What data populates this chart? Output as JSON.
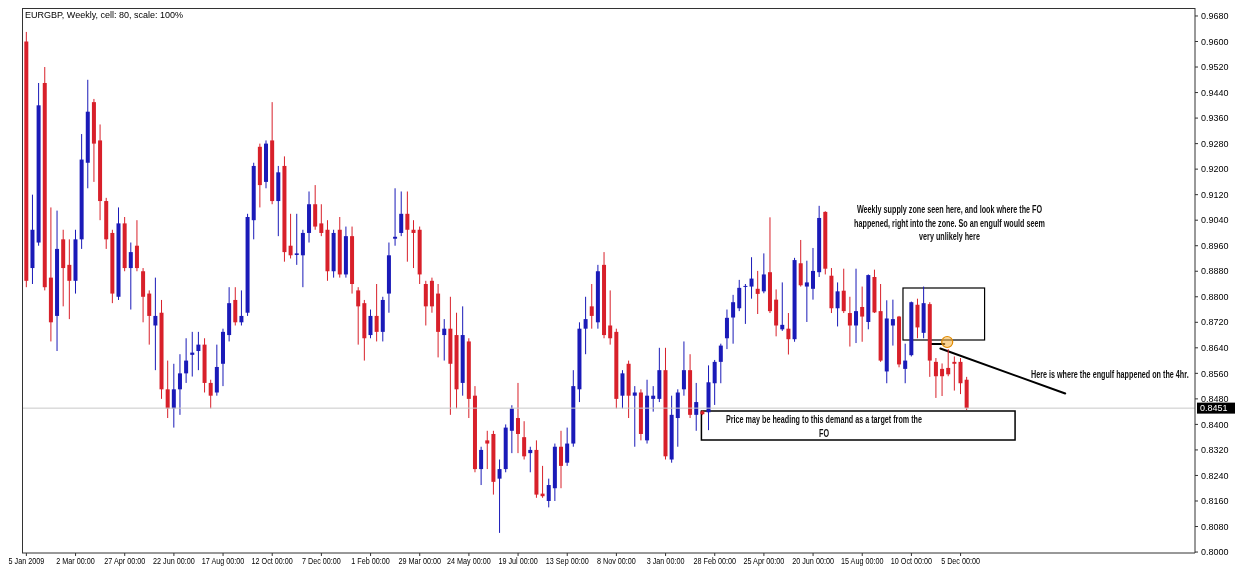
{
  "chart_data": {
    "type": "candlestick",
    "title": "EURGBP, Weekly, cell: 80, scale: 100%",
    "x": [
      "2009-01-05",
      "2009-01-12",
      "2009-01-19",
      "2009-01-26",
      "2009-02-02",
      "2009-02-09",
      "2009-02-16",
      "2009-02-23",
      "2009-03-02",
      "2009-03-09",
      "2009-03-16",
      "2009-03-23",
      "2009-03-30",
      "2009-04-06",
      "2009-04-13",
      "2009-04-20",
      "2009-04-27",
      "2009-05-04",
      "2009-05-11",
      "2009-05-18",
      "2009-05-25",
      "2009-06-01",
      "2009-06-08",
      "2009-06-15",
      "2009-06-22",
      "2009-06-29",
      "2009-07-06",
      "2009-07-13",
      "2009-07-20",
      "2009-07-27",
      "2009-08-03",
      "2009-08-10",
      "2009-08-17",
      "2009-08-24",
      "2009-08-31",
      "2009-09-07",
      "2009-09-14",
      "2009-09-21",
      "2009-09-28",
      "2009-10-05",
      "2009-10-12",
      "2009-10-19",
      "2009-10-26",
      "2009-11-02",
      "2009-11-09",
      "2009-11-16",
      "2009-11-23",
      "2009-11-30",
      "2009-12-07",
      "2009-12-14",
      "2009-12-21",
      "2009-12-28",
      "2010-01-04",
      "2010-01-11",
      "2010-01-18",
      "2010-01-25",
      "2010-02-01",
      "2010-02-08",
      "2010-02-15",
      "2010-02-22",
      "2010-03-01",
      "2010-03-08",
      "2010-03-15",
      "2010-03-22",
      "2010-03-29",
      "2010-04-05",
      "2010-04-12",
      "2010-04-19",
      "2010-04-26",
      "2010-05-03",
      "2010-05-10",
      "2010-05-17",
      "2010-05-24",
      "2010-05-31",
      "2010-06-07",
      "2010-06-14",
      "2010-06-21",
      "2010-06-28",
      "2010-07-05",
      "2010-07-12",
      "2010-07-19",
      "2010-07-26",
      "2010-08-02",
      "2010-08-09",
      "2010-08-16",
      "2010-08-23",
      "2010-08-30",
      "2010-09-06",
      "2010-09-13",
      "2010-09-20",
      "2010-09-27",
      "2010-10-04",
      "2010-10-11",
      "2010-10-18",
      "2010-10-25",
      "2010-11-01",
      "2010-11-08",
      "2010-11-15",
      "2010-11-22",
      "2010-11-29",
      "2010-12-06",
      "2010-12-13",
      "2010-12-20",
      "2010-12-27",
      "2011-01-03",
      "2011-01-10",
      "2011-01-17",
      "2011-01-24",
      "2011-01-31",
      "2011-02-07",
      "2011-02-14",
      "2011-02-21",
      "2011-02-28",
      "2011-03-07",
      "2011-03-14",
      "2011-03-21",
      "2011-03-28",
      "2011-04-04",
      "2011-04-11",
      "2011-04-18",
      "2011-04-25",
      "2011-05-02",
      "2011-05-09",
      "2011-05-16",
      "2011-05-23",
      "2011-05-30",
      "2011-06-06",
      "2011-06-13",
      "2011-06-20",
      "2011-06-27",
      "2011-07-04",
      "2011-07-11",
      "2011-07-18",
      "2011-07-25",
      "2011-08-01",
      "2011-08-08",
      "2011-08-15",
      "2011-08-22",
      "2011-08-29",
      "2011-09-05",
      "2011-09-12",
      "2011-09-19",
      "2011-09-26",
      "2011-10-03",
      "2011-10-10",
      "2011-10-17",
      "2011-10-24",
      "2011-10-31",
      "2011-11-07",
      "2011-11-14",
      "2011-11-21",
      "2011-11-28",
      "2011-12-05",
      "2011-12-12"
    ],
    "ohlc": [
      [
        0.96,
        0.963,
        0.883,
        0.885
      ],
      [
        0.889,
        0.912,
        0.884,
        0.901
      ],
      [
        0.897,
        0.947,
        0.896,
        0.94
      ],
      [
        0.947,
        0.952,
        0.882,
        0.883
      ],
      [
        0.886,
        0.908,
        0.866,
        0.872
      ],
      [
        0.874,
        0.907,
        0.863,
        0.895
      ],
      [
        0.898,
        0.901,
        0.877,
        0.889
      ],
      [
        0.89,
        0.898,
        0.873,
        0.885
      ],
      [
        0.885,
        0.901,
        0.881,
        0.898
      ],
      [
        0.898,
        0.931,
        0.895,
        0.923
      ],
      [
        0.922,
        0.948,
        0.914,
        0.938
      ],
      [
        0.941,
        0.942,
        0.916,
        0.928
      ],
      [
        0.929,
        0.934,
        0.904,
        0.91
      ],
      [
        0.91,
        0.911,
        0.895,
        0.898
      ],
      [
        0.9,
        0.901,
        0.878,
        0.881
      ],
      [
        0.88,
        0.908,
        0.879,
        0.903
      ],
      [
        0.903,
        0.905,
        0.888,
        0.889
      ],
      [
        0.889,
        0.897,
        0.876,
        0.894
      ],
      [
        0.896,
        0.904,
        0.888,
        0.889
      ],
      [
        0.888,
        0.889,
        0.872,
        0.88
      ],
      [
        0.881,
        0.882,
        0.865,
        0.874
      ],
      [
        0.871,
        0.886,
        0.857,
        0.874
      ],
      [
        0.875,
        0.879,
        0.848,
        0.851
      ],
      [
        0.851,
        0.86,
        0.842,
        0.845
      ],
      [
        0.845,
        0.859,
        0.839,
        0.851
      ],
      [
        0.851,
        0.862,
        0.843,
        0.856
      ],
      [
        0.856,
        0.867,
        0.853,
        0.86
      ],
      [
        0.8618,
        0.869,
        0.855,
        0.8625
      ],
      [
        0.863,
        0.869,
        0.857,
        0.865
      ],
      [
        0.865,
        0.867,
        0.85,
        0.853
      ],
      [
        0.853,
        0.854,
        0.845,
        0.849
      ],
      [
        0.85,
        0.865,
        0.849,
        0.858
      ],
      [
        0.859,
        0.87,
        0.852,
        0.869
      ],
      [
        0.868,
        0.883,
        0.866,
        0.878
      ],
      [
        0.879,
        0.883,
        0.871,
        0.872
      ],
      [
        0.872,
        0.882,
        0.871,
        0.874
      ],
      [
        0.875,
        0.906,
        0.874,
        0.905
      ],
      [
        0.904,
        0.922,
        0.898,
        0.921
      ],
      [
        0.927,
        0.928,
        0.908,
        0.915
      ],
      [
        0.916,
        0.929,
        0.914,
        0.928
      ],
      [
        0.929,
        0.941,
        0.909,
        0.91
      ],
      [
        0.91,
        0.921,
        0.899,
        0.919
      ],
      [
        0.921,
        0.924,
        0.891,
        0.894
      ],
      [
        0.896,
        0.906,
        0.892,
        0.893
      ],
      [
        0.8931,
        0.906,
        0.89,
        0.8936
      ],
      [
        0.893,
        0.901,
        0.883,
        0.9
      ],
      [
        0.9,
        0.913,
        0.897,
        0.909
      ],
      [
        0.909,
        0.915,
        0.901,
        0.902
      ],
      [
        0.903,
        0.909,
        0.899,
        0.9
      ],
      [
        0.901,
        0.904,
        0.885,
        0.888
      ],
      [
        0.888,
        0.901,
        0.886,
        0.9
      ],
      [
        0.901,
        0.905,
        0.886,
        0.887
      ],
      [
        0.887,
        0.902,
        0.886,
        0.899
      ],
      [
        0.899,
        0.902,
        0.881,
        0.884
      ],
      [
        0.882,
        0.883,
        0.865,
        0.877
      ],
      [
        0.878,
        0.879,
        0.86,
        0.867
      ],
      [
        0.868,
        0.876,
        0.867,
        0.874
      ],
      [
        0.874,
        0.884,
        0.866,
        0.869
      ],
      [
        0.869,
        0.88,
        0.866,
        0.879
      ],
      [
        0.881,
        0.897,
        0.875,
        0.893
      ],
      [
        0.8982,
        0.914,
        0.896,
        0.8988
      ],
      [
        0.9,
        0.913,
        0.899,
        0.906
      ],
      [
        0.906,
        0.913,
        0.891,
        0.901
      ],
      [
        0.901,
        0.904,
        0.889,
        0.9
      ],
      [
        0.901,
        0.902,
        0.884,
        0.887
      ],
      [
        0.884,
        0.885,
        0.871,
        0.877
      ],
      [
        0.885,
        0.886,
        0.875,
        0.877
      ],
      [
        0.881,
        0.884,
        0.861,
        0.869
      ],
      [
        0.868,
        0.873,
        0.86,
        0.87
      ],
      [
        0.87,
        0.88,
        0.843,
        0.859
      ],
      [
        0.868,
        0.875,
        0.845,
        0.851
      ],
      [
        0.853,
        0.877,
        0.849,
        0.868
      ],
      [
        0.866,
        0.867,
        0.842,
        0.848
      ],
      [
        0.849,
        0.852,
        0.825,
        0.826
      ],
      [
        0.826,
        0.833,
        0.821,
        0.832
      ],
      [
        0.835,
        0.838,
        0.826,
        0.834
      ],
      [
        0.837,
        0.838,
        0.818,
        0.822
      ],
      [
        0.823,
        0.829,
        0.806,
        0.826
      ],
      [
        0.826,
        0.84,
        0.825,
        0.839
      ],
      [
        0.838,
        0.846,
        0.831,
        0.845
      ],
      [
        0.842,
        0.853,
        0.831,
        0.837
      ],
      [
        0.836,
        0.841,
        0.829,
        0.83
      ],
      [
        0.831,
        0.833,
        0.825,
        0.832
      ],
      [
        0.832,
        0.835,
        0.817,
        0.818
      ],
      [
        0.8183,
        0.827,
        0.817,
        0.8175
      ],
      [
        0.816,
        0.823,
        0.814,
        0.821
      ],
      [
        0.82,
        0.834,
        0.816,
        0.833
      ],
      [
        0.833,
        0.838,
        0.82,
        0.827
      ],
      [
        0.828,
        0.839,
        0.827,
        0.834
      ],
      [
        0.834,
        0.857,
        0.833,
        0.852
      ],
      [
        0.851,
        0.872,
        0.847,
        0.87
      ],
      [
        0.87,
        0.88,
        0.862,
        0.873
      ],
      [
        0.877,
        0.884,
        0.87,
        0.874
      ],
      [
        0.872,
        0.89,
        0.87,
        0.888
      ],
      [
        0.89,
        0.894,
        0.867,
        0.868
      ],
      [
        0.871,
        0.882,
        0.865,
        0.867
      ],
      [
        0.869,
        0.87,
        0.845,
        0.848
      ],
      [
        0.849,
        0.857,
        0.845,
        0.856
      ],
      [
        0.859,
        0.86,
        0.842,
        0.849
      ],
      [
        0.849,
        0.852,
        0.833,
        0.85
      ],
      [
        0.85,
        0.851,
        0.835,
        0.837
      ],
      [
        0.835,
        0.854,
        0.834,
        0.849
      ],
      [
        0.848,
        0.852,
        0.844,
        0.849
      ],
      [
        0.848,
        0.864,
        0.847,
        0.857
      ],
      [
        0.857,
        0.864,
        0.829,
        0.83
      ],
      [
        0.829,
        0.849,
        0.828,
        0.843
      ],
      [
        0.842,
        0.851,
        0.833,
        0.85
      ],
      [
        0.851,
        0.866,
        0.849,
        0.857
      ],
      [
        0.857,
        0.862,
        0.842,
        0.843
      ],
      [
        0.843,
        0.853,
        0.838,
        0.847
      ],
      [
        0.8441,
        0.8444,
        0.8429,
        0.8432
      ],
      [
        0.8438,
        0.8585,
        0.8382,
        0.8532
      ],
      [
        0.8529,
        0.8602,
        0.8461,
        0.8596
      ],
      [
        0.8596,
        0.8653,
        0.8529,
        0.8647
      ],
      [
        0.867,
        0.876,
        0.8636,
        0.8734
      ],
      [
        0.8735,
        0.8806,
        0.8653,
        0.8783
      ],
      [
        0.8764,
        0.8853,
        0.8755,
        0.8828
      ],
      [
        0.8831,
        0.884,
        0.8715,
        0.8834
      ],
      [
        0.8832,
        0.8924,
        0.8794,
        0.8857
      ],
      [
        0.8825,
        0.8881,
        0.8746,
        0.8809
      ],
      [
        0.8817,
        0.8936,
        0.8811,
        0.887
      ],
      [
        0.8877,
        0.9049,
        0.8749,
        0.8755
      ],
      [
        0.8791,
        0.8823,
        0.8676,
        0.871
      ],
      [
        0.8698,
        0.8845,
        0.8693,
        0.8712
      ],
      [
        0.87,
        0.8749,
        0.8619,
        0.8667
      ],
      [
        0.8667,
        0.8922,
        0.8659,
        0.8915
      ],
      [
        0.8905,
        0.8978,
        0.8832,
        0.8836
      ],
      [
        0.8832,
        0.8913,
        0.8721,
        0.8845
      ],
      [
        0.8825,
        0.8953,
        0.8791,
        0.8881
      ],
      [
        0.8877,
        0.9085,
        0.8862,
        0.9047
      ],
      [
        0.9066,
        0.9068,
        0.887,
        0.8888
      ],
      [
        0.8866,
        0.889,
        0.8749,
        0.8764
      ],
      [
        0.8764,
        0.8845,
        0.8707,
        0.8817
      ],
      [
        0.8819,
        0.8888,
        0.8749,
        0.8755
      ],
      [
        0.8749,
        0.88,
        0.8644,
        0.871
      ],
      [
        0.871,
        0.8888,
        0.8655,
        0.8755
      ],
      [
        0.8768,
        0.8832,
        0.8659,
        0.8738
      ],
      [
        0.8721,
        0.887,
        0.8698,
        0.8868
      ],
      [
        0.8862,
        0.8885,
        0.8749,
        0.8751
      ],
      [
        0.8755,
        0.884,
        0.8596,
        0.86
      ],
      [
        0.8566,
        0.8789,
        0.8529,
        0.8732
      ],
      [
        0.871,
        0.8791,
        0.8647,
        0.873
      ],
      [
        0.8738,
        0.874,
        0.8579,
        0.8588
      ],
      [
        0.8574,
        0.8653,
        0.8529,
        0.86
      ],
      [
        0.8617,
        0.8785,
        0.8613,
        0.8783
      ],
      [
        0.8775,
        0.8794,
        0.867,
        0.8704
      ],
      [
        0.8687,
        0.8832,
        0.867,
        0.878
      ],
      [
        0.8777,
        0.8783,
        0.8549,
        0.86
      ],
      [
        0.8596,
        0.8608,
        0.8483,
        0.8551
      ],
      [
        0.8574,
        0.8591,
        0.8489,
        0.8551
      ],
      [
        0.8577,
        0.8636,
        0.8551,
        0.8557
      ],
      [
        0.8596,
        0.8613,
        0.8506,
        0.859
      ],
      [
        0.8596,
        0.8608,
        0.8495,
        0.8529
      ],
      [
        0.854,
        0.8549,
        0.8445,
        0.8451
      ]
    ],
    "colors": [
      "#d8202a",
      "#1a1ab8",
      "#1a1ab8",
      "#d8202a",
      "#d8202a",
      "#1a1ab8",
      "#d8202a",
      "#d8202a",
      "#1a1ab8",
      "#1a1ab8",
      "#1a1ab8",
      "#d8202a",
      "#d8202a",
      "#d8202a",
      "#d8202a",
      "#1a1ab8",
      "#d8202a",
      "#1a1ab8",
      "#d8202a",
      "#d8202a",
      "#d8202a",
      "#1a1ab8",
      "#d8202a",
      "#d8202a",
      "#1a1ab8",
      "#1a1ab8",
      "#1a1ab8",
      "#1a1ab8",
      "#1a1ab8",
      "#d8202a",
      "#d8202a",
      "#1a1ab8",
      "#1a1ab8",
      "#1a1ab8",
      "#d8202a",
      "#1a1ab8",
      "#1a1ab8",
      "#1a1ab8",
      "#d8202a",
      "#1a1ab8",
      "#d8202a",
      "#1a1ab8",
      "#d8202a",
      "#d8202a",
      "#1a1ab8",
      "#1a1ab8",
      "#1a1ab8",
      "#d8202a",
      "#d8202a",
      "#d8202a",
      "#1a1ab8",
      "#d8202a",
      "#1a1ab8",
      "#d8202a",
      "#d8202a",
      "#d8202a",
      "#1a1ab8",
      "#d8202a",
      "#1a1ab8",
      "#1a1ab8",
      "#1a1ab8",
      "#1a1ab8",
      "#d8202a",
      "#d8202a",
      "#d8202a",
      "#d8202a",
      "#d8202a",
      "#d8202a",
      "#1a1ab8",
      "#d8202a",
      "#d8202a",
      "#1a1ab8",
      "#d8202a",
      "#d8202a",
      "#1a1ab8",
      "#d8202a",
      "#d8202a",
      "#1a1ab8",
      "#1a1ab8",
      "#1a1ab8",
      "#d8202a",
      "#d8202a",
      "#1a1ab8",
      "#d8202a",
      "#d8202a",
      "#1a1ab8",
      "#1a1ab8",
      "#d8202a",
      "#1a1ab8",
      "#1a1ab8",
      "#1a1ab8",
      "#1a1ab8",
      "#d8202a",
      "#1a1ab8",
      "#d8202a",
      "#d8202a",
      "#d8202a",
      "#1a1ab8",
      "#d8202a",
      "#1a1ab8",
      "#d8202a",
      "#1a1ab8",
      "#1a1ab8",
      "#1a1ab8",
      "#d8202a",
      "#1a1ab8",
      "#1a1ab8",
      "#1a1ab8",
      "#d8202a",
      "#1a1ab8",
      "#d8202a",
      "#1a1ab8",
      "#1a1ab8",
      "#1a1ab8",
      "#1a1ab8",
      "#1a1ab8",
      "#1a1ab8",
      "#1a1ab8",
      "#1a1ab8",
      "#d8202a",
      "#1a1ab8",
      "#d8202a",
      "#d8202a",
      "#1a1ab8",
      "#d8202a",
      "#1a1ab8",
      "#d8202a",
      "#1a1ab8",
      "#1a1ab8",
      "#1a1ab8",
      "#d8202a",
      "#d8202a",
      "#1a1ab8",
      "#d8202a",
      "#d8202a",
      "#1a1ab8",
      "#d8202a",
      "#1a1ab8",
      "#d8202a",
      "#d8202a",
      "#1a1ab8",
      "#1a1ab8",
      "#d8202a",
      "#1a1ab8",
      "#1a1ab8",
      "#d8202a",
      "#1a1ab8",
      "#d8202a",
      "#d8202a",
      "#d8202a",
      "#d8202a",
      "#d8202a",
      "#d8202a",
      "#d8202a"
    ],
    "xlim": [
      "2008-12-31",
      "2012-08-28"
    ],
    "xticks": [
      {
        "value": "2009-01-05",
        "label": "5 Jan 2009"
      },
      {
        "value": "2009-03-02",
        "label": "2 Mar 00:00"
      },
      {
        "value": "2009-04-27",
        "label": "27 Apr 00:00"
      },
      {
        "value": "2009-06-22",
        "label": "22 Jun 00:00"
      },
      {
        "value": "2009-08-17",
        "label": "17 Aug 00:00"
      },
      {
        "value": "2009-10-12",
        "label": "12 Oct 00:00"
      },
      {
        "value": "2009-12-07",
        "label": "7 Dec 00:00"
      },
      {
        "value": "2010-02-01",
        "label": "1 Feb 00:00"
      },
      {
        "value": "2010-03-29",
        "label": "29 Mar 00:00"
      },
      {
        "value": "2010-05-24",
        "label": "24 May 00:00"
      },
      {
        "value": "2010-07-19",
        "label": "19 Jul 00:00"
      },
      {
        "value": "2010-09-13",
        "label": "13 Sep 00:00"
      },
      {
        "value": "2010-11-08",
        "label": "8 Nov 00:00"
      },
      {
        "value": "2011-01-03",
        "label": "3 Jan 00:00"
      },
      {
        "value": "2011-02-28",
        "label": "28 Feb 00:00"
      },
      {
        "value": "2011-04-25",
        "label": "25 Apr 00:00"
      },
      {
        "value": "2011-06-20",
        "label": "20 Jun 00:00"
      },
      {
        "value": "2011-08-15",
        "label": "15 Aug 00:00"
      },
      {
        "value": "2011-10-10",
        "label": "10 Oct 00:00"
      },
      {
        "value": "2011-12-05",
        "label": "5 Dec 00:00"
      }
    ],
    "ylim": [
      0.7997,
      0.9705
    ],
    "yticks": [
      {
        "value": 0.8,
        "label": "0.8000"
      },
      {
        "value": 0.808,
        "label": "0.8080"
      },
      {
        "value": 0.816,
        "label": "0.8160"
      },
      {
        "value": 0.824,
        "label": "0.8240"
      },
      {
        "value": 0.832,
        "label": "0.8320"
      },
      {
        "value": 0.84,
        "label": "0.8400"
      },
      {
        "value": 0.848,
        "label": "0.8480"
      },
      {
        "value": 0.856,
        "label": "0.8560"
      },
      {
        "value": 0.864,
        "label": "0.8640"
      },
      {
        "value": 0.872,
        "label": "0.8720"
      },
      {
        "value": 0.88,
        "label": "0.8800"
      },
      {
        "value": 0.888,
        "label": "0.8880"
      },
      {
        "value": 0.896,
        "label": "0.8960"
      },
      {
        "value": 0.904,
        "label": "0.9040"
      },
      {
        "value": 0.912,
        "label": "0.9120"
      },
      {
        "value": 0.92,
        "label": "0.9200"
      },
      {
        "value": 0.928,
        "label": "0.9280"
      },
      {
        "value": 0.936,
        "label": "0.9360"
      },
      {
        "value": 0.944,
        "label": "0.9440"
      },
      {
        "value": 0.952,
        "label": "0.9520"
      },
      {
        "value": 0.96,
        "label": "0.9600"
      },
      {
        "value": 0.968,
        "label": "0.9680"
      }
    ],
    "ref_lines": [
      {
        "axis": "y",
        "value": 0.8451,
        "label": "0.8451",
        "color": "#c8c8c8"
      }
    ],
    "annotations": [
      "Weekly supply zone seen here, and look where the FO happened, right into the zone. So an engulf would seem very unlikely here",
      "Here is where the engulf happened on the 4hr.",
      "Price may be heading to this demand as a target from the FO"
    ]
  }
}
